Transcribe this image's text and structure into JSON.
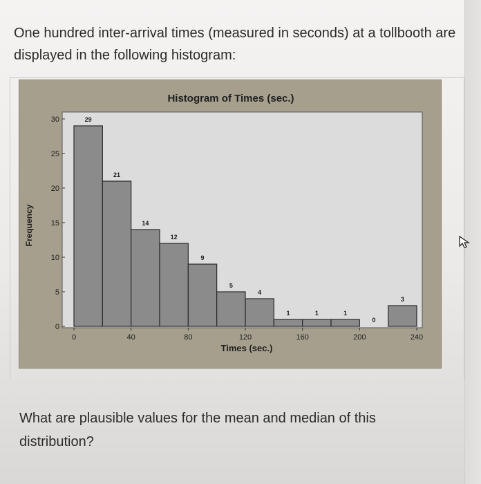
{
  "question": {
    "intro": "One hundred inter-arrival times (measured in seconds) at a tollbooth are displayed in the following histogram:",
    "prompt": "What are plausible values for the mean and median of this distribution?"
  },
  "colors": {
    "frame": "#a69f8d",
    "plot_area": "#dcdcdc",
    "bar_fill": "#8b8b8b",
    "bar_edge": "#2a2a2a"
  },
  "chart_data": {
    "type": "bar",
    "title": "Histogram of Times (sec.)",
    "xlabel": "Times (sec.)",
    "ylabel": "Frequency",
    "bin_width": 20,
    "bins": [
      [
        0,
        20
      ],
      [
        20,
        40
      ],
      [
        40,
        60
      ],
      [
        60,
        80
      ],
      [
        80,
        100
      ],
      [
        100,
        120
      ],
      [
        120,
        140
      ],
      [
        140,
        160
      ],
      [
        160,
        180
      ],
      [
        180,
        200
      ],
      [
        200,
        220
      ],
      [
        220,
        240
      ]
    ],
    "values": [
      29,
      21,
      14,
      12,
      9,
      5,
      4,
      1,
      1,
      1,
      0,
      3
    ],
    "data_labels": [
      "29",
      "21",
      "14",
      "12",
      "9",
      "5",
      "4",
      "1",
      "1",
      "1",
      "0",
      "3"
    ],
    "xlim": [
      0,
      240
    ],
    "ylim": [
      0,
      30
    ],
    "x_ticks": [
      0,
      40,
      80,
      120,
      160,
      200,
      240
    ],
    "x_tick_labels": [
      "0",
      "40",
      "80",
      "120",
      "160",
      "200",
      "240"
    ],
    "y_ticks": [
      0,
      5,
      10,
      15,
      20,
      25,
      30
    ],
    "y_tick_labels": [
      "0",
      "5",
      "10",
      "15",
      "20",
      "25",
      "30"
    ],
    "grid": false,
    "legend": "none"
  }
}
